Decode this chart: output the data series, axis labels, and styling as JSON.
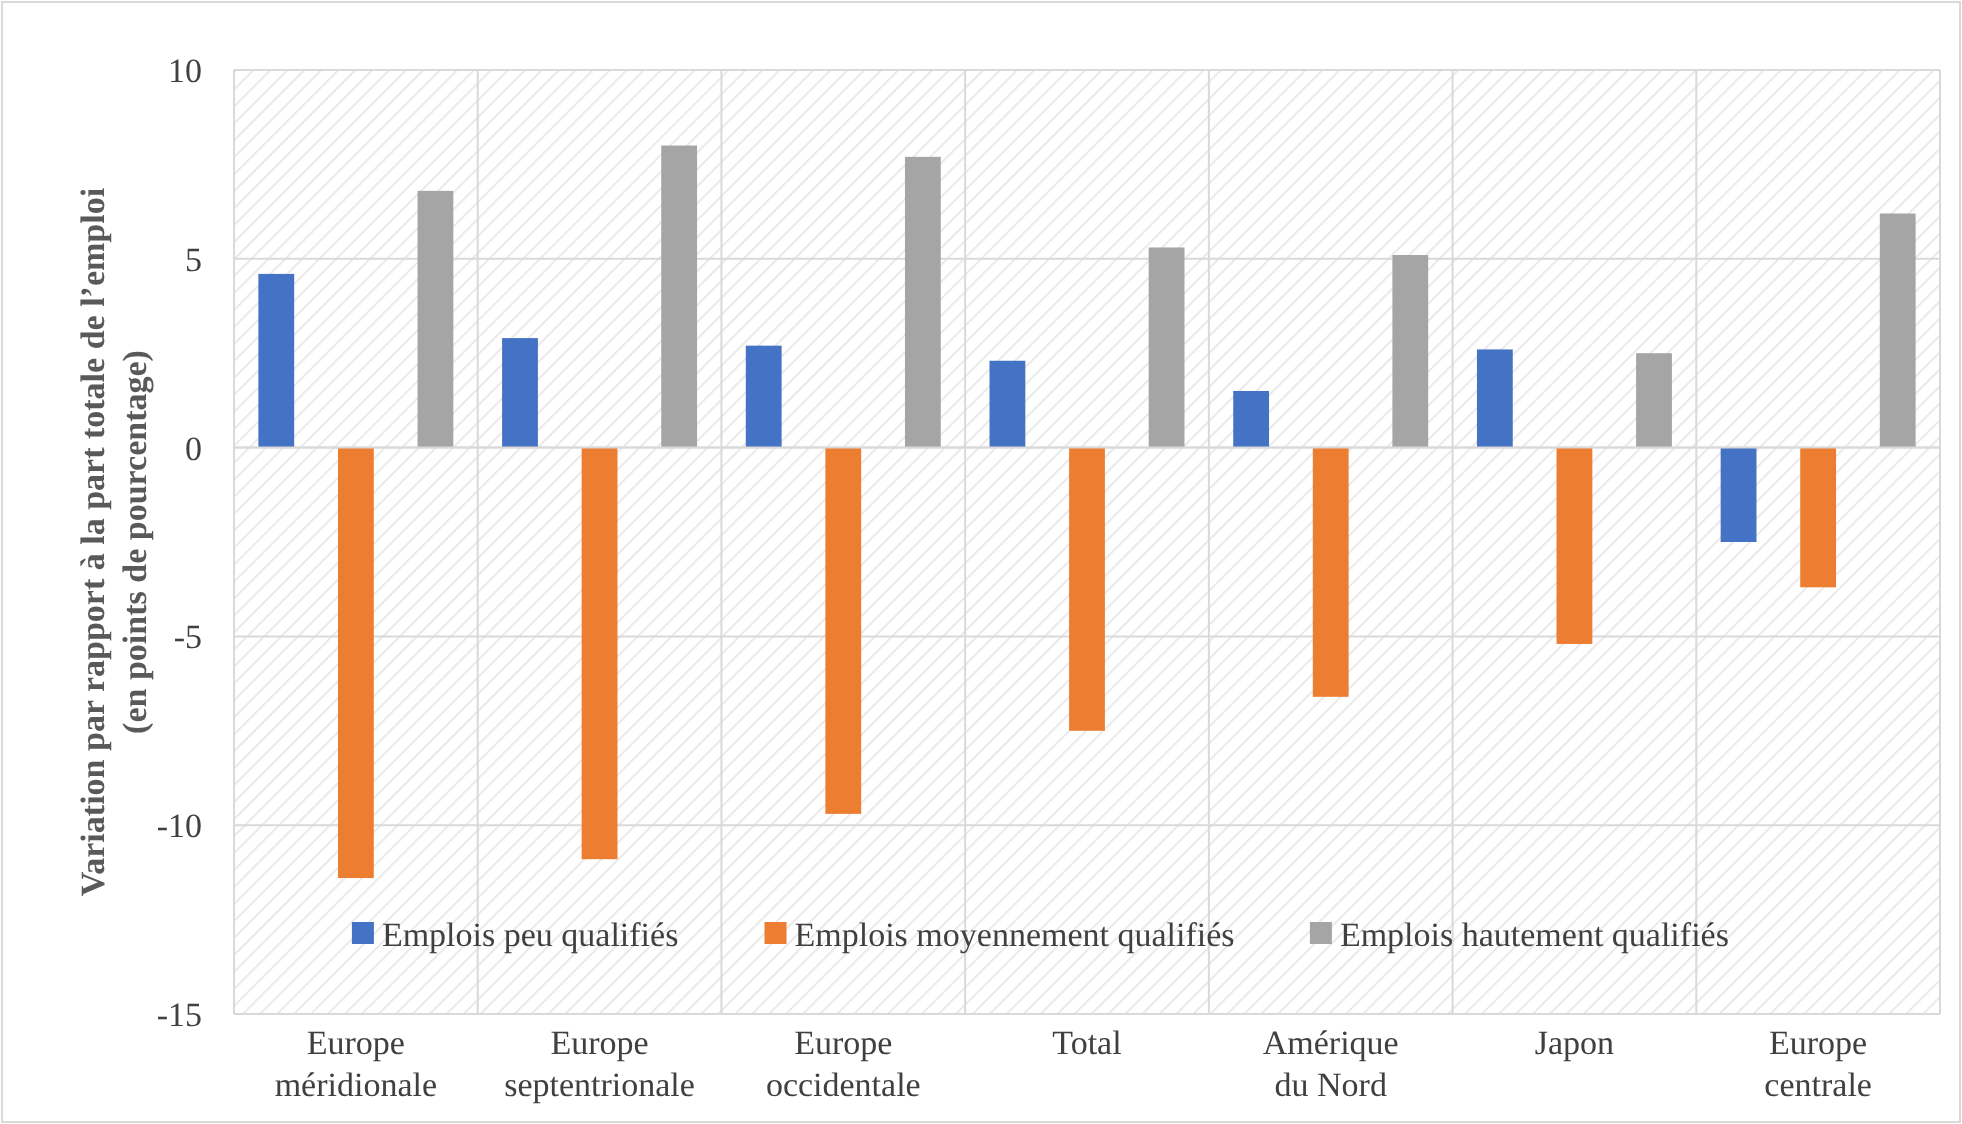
{
  "chart_data": {
    "type": "bar",
    "ylabel": "Variation par rapport à la part totale de l’emploi (en points de pourcentage)",
    "categories": [
      "Europe méridionale",
      "Europe septentrionale",
      "Europe occidentale",
      "Total",
      "Amérique du Nord",
      "Japon",
      "Europe centrale"
    ],
    "series": [
      {
        "name": "Emplois peu qualifiés",
        "color": "#4472c4",
        "values": [
          4.6,
          2.9,
          2.7,
          2.3,
          1.5,
          2.6,
          -2.5
        ]
      },
      {
        "name": "Emplois moyennement qualifiés",
        "color": "#ed7d31",
        "values": [
          -11.4,
          -10.9,
          -9.7,
          -7.5,
          -6.6,
          -5.2,
          -3.7
        ]
      },
      {
        "name": "Emplois hautement qualifiés",
        "color": "#a5a5a5",
        "values": [
          6.8,
          8.0,
          7.7,
          5.3,
          5.1,
          2.5,
          6.2
        ]
      }
    ],
    "ylim": [
      -15,
      10
    ],
    "yticks": [
      -15,
      -10,
      -5,
      0,
      5,
      10
    ],
    "grid": true,
    "legend": "bottom"
  }
}
